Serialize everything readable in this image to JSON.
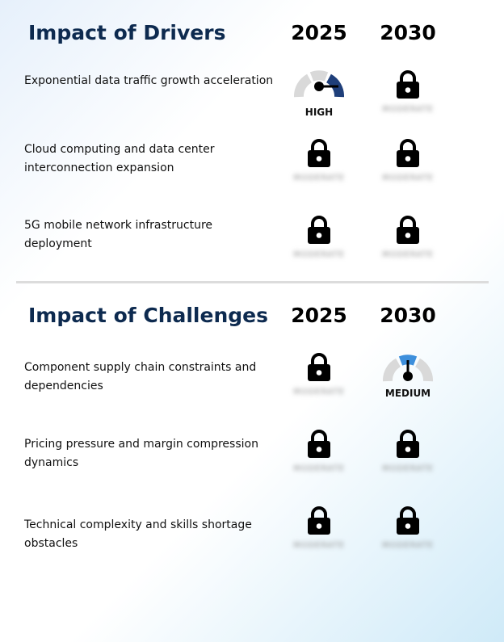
{
  "drivers": {
    "title": "Impact of Drivers",
    "year_a": "2025",
    "year_b": "2030",
    "rows": [
      {
        "label": "Exponential data traffic growth acceleration",
        "a": "gauge-high",
        "b": "locked"
      },
      {
        "label": "Cloud computing and data center interconnection expansion",
        "a": "locked",
        "b": "locked"
      },
      {
        "label": "5G mobile network infrastructure deployment",
        "a": "locked",
        "b": "locked"
      }
    ]
  },
  "challenges": {
    "title": "Impact of Challenges",
    "year_a": "2025",
    "year_b": "2030",
    "rows": [
      {
        "label": "Component supply chain constraints and dependencies",
        "a": "locked",
        "b": "gauge-medium"
      },
      {
        "label": "Pricing pressure and margin compression dynamics",
        "a": "locked",
        "b": "locked"
      },
      {
        "label": "Technical complexity and skills shortage obstacles",
        "a": "locked",
        "b": "locked"
      }
    ]
  },
  "gauge": {
    "high_label": "HIGH",
    "medium_label": "MEDIUM",
    "high_color": "#1f3f7a",
    "medium_color": "#3d8fdc",
    "track_color": "#d9d9d9"
  },
  "lock_icon": "lock-icon",
  "blurred_placeholder": "MODERATE"
}
